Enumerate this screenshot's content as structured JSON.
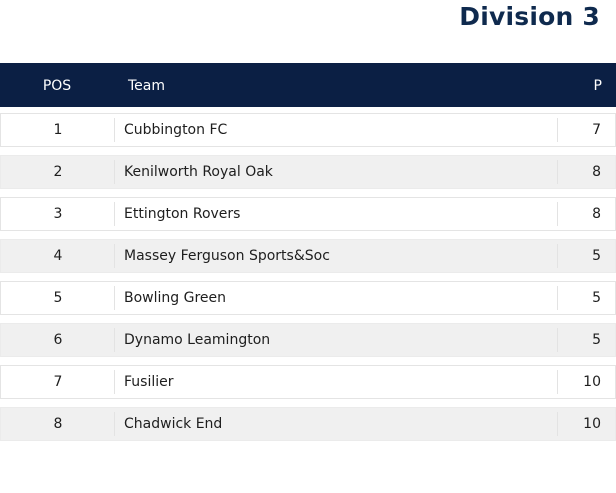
{
  "page": {
    "title": "Division 3"
  },
  "table": {
    "headers": {
      "pos": "POS",
      "team": "Team",
      "played": "P"
    },
    "rows": [
      {
        "pos": "1",
        "team": "Cubbington FC",
        "played": "7"
      },
      {
        "pos": "2",
        "team": "Kenilworth Royal Oak",
        "played": "8"
      },
      {
        "pos": "3",
        "team": "Ettington Rovers",
        "played": "8"
      },
      {
        "pos": "4",
        "team": "Massey Ferguson Sports&Soc",
        "played": "5"
      },
      {
        "pos": "5",
        "team": "Bowling Green",
        "played": "5"
      },
      {
        "pos": "6",
        "team": "Dynamo Leamington",
        "played": "5"
      },
      {
        "pos": "7",
        "team": "Fusilier",
        "played": "10"
      },
      {
        "pos": "8",
        "team": "Chadwick End",
        "played": "10"
      }
    ]
  },
  "colors": {
    "header_background": "#0b1f44",
    "title_text": "#0f2a4e",
    "alt_row_background": "#f0f0f0"
  }
}
